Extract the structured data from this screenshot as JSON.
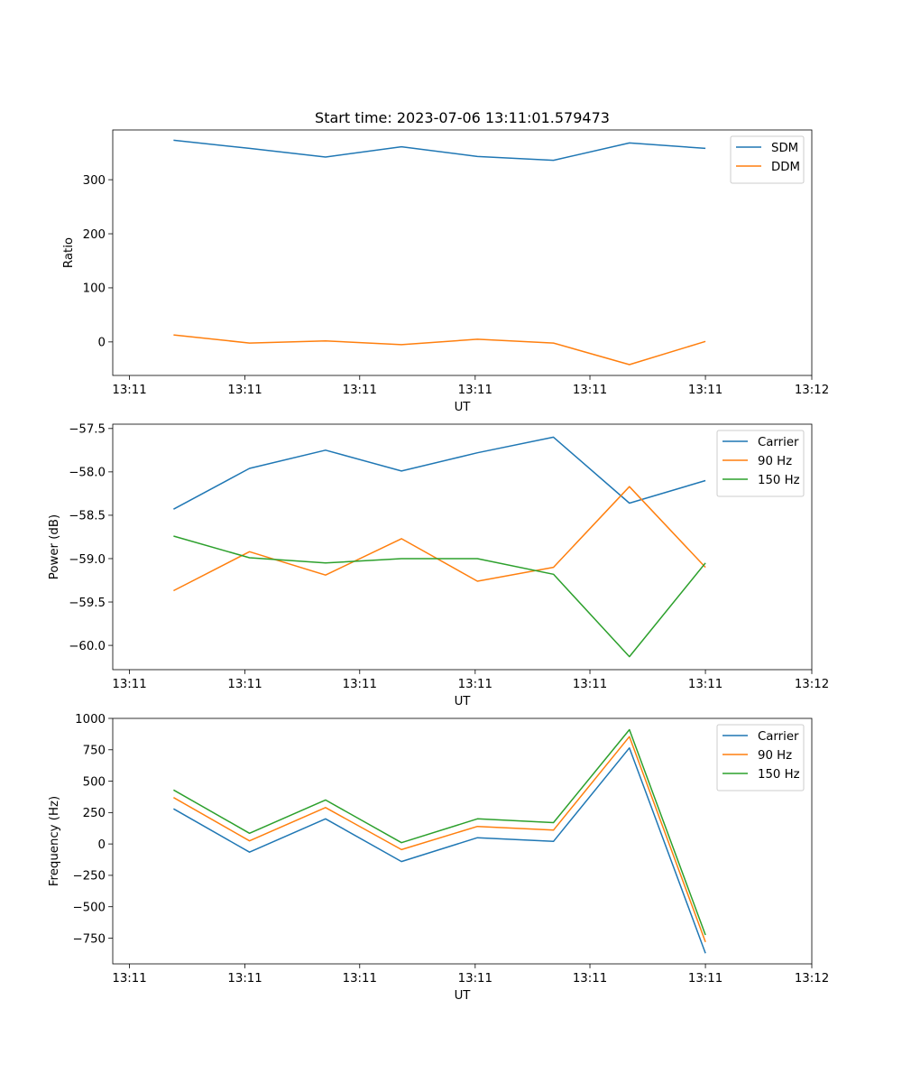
{
  "figure_title": "Start time: 2023-07-06 13:11:01.579473",
  "chart_data": [
    {
      "type": "line",
      "title": "Start time: 2023-07-06 13:11:01.579473",
      "xlabel": "UT",
      "ylabel": "Ratio",
      "x": [
        1,
        2,
        3,
        4,
        5,
        6,
        7,
        8
      ],
      "xlim": [
        0.2,
        9.4
      ],
      "xticks": [
        0.42,
        1.94,
        3.45,
        4.97,
        6.48,
        8.0,
        9.4
      ],
      "xtick_labels": [
        "13:11",
        "13:11",
        "13:11",
        "13:11",
        "13:11",
        "13:11",
        "13:12"
      ],
      "ylim": [
        -62,
        392
      ],
      "yticks": [
        0,
        100,
        200,
        300
      ],
      "ytick_labels": [
        "0",
        "100",
        "200",
        "300"
      ],
      "legend_position": "upper-right",
      "series": [
        {
          "name": "SDM",
          "color": "#1f77b4",
          "values": [
            373,
            358,
            342,
            361,
            343,
            336,
            368,
            358
          ]
        },
        {
          "name": "DDM",
          "color": "#ff7f0e",
          "values": [
            13,
            -2,
            2,
            -5,
            5,
            -2,
            -42,
            1
          ]
        }
      ]
    },
    {
      "type": "line",
      "xlabel": "UT",
      "ylabel": "Power (dB)",
      "x": [
        1,
        2,
        3,
        4,
        5,
        6,
        7,
        8
      ],
      "xlim": [
        0.2,
        9.4
      ],
      "xticks": [
        0.42,
        1.94,
        3.45,
        4.97,
        6.48,
        8.0,
        9.4
      ],
      "xtick_labels": [
        "13:11",
        "13:11",
        "13:11",
        "13:11",
        "13:11",
        "13:11",
        "13:12"
      ],
      "ylim": [
        -60.28,
        -57.45
      ],
      "yticks": [
        -60.0,
        -59.5,
        -59.0,
        -58.5,
        -58.0,
        -57.5
      ],
      "ytick_labels": [
        "−60.0",
        "−59.5",
        "−59.0",
        "−58.5",
        "−58.0",
        "−57.5"
      ],
      "legend_position": "upper-right",
      "series": [
        {
          "name": "Carrier",
          "color": "#1f77b4",
          "values": [
            -58.43,
            -57.96,
            -57.75,
            -57.99,
            -57.78,
            -57.6,
            -58.36,
            -58.1
          ]
        },
        {
          "name": "90 Hz",
          "color": "#ff7f0e",
          "values": [
            -59.37,
            -58.92,
            -59.19,
            -58.77,
            -59.26,
            -59.1,
            -58.17,
            -59.1
          ]
        },
        {
          "name": "150 Hz",
          "color": "#2ca02c",
          "values": [
            -58.74,
            -58.99,
            -59.05,
            -59.0,
            -59.0,
            -59.18,
            -60.13,
            -59.05
          ]
        }
      ]
    },
    {
      "type": "line",
      "xlabel": "UT",
      "ylabel": "Frequency (Hz)",
      "x": [
        1,
        2,
        3,
        4,
        5,
        6,
        7,
        8
      ],
      "xlim": [
        0.2,
        9.4
      ],
      "xticks": [
        0.42,
        1.94,
        3.45,
        4.97,
        6.48,
        8.0,
        9.4
      ],
      "xtick_labels": [
        "13:11",
        "13:11",
        "13:11",
        "13:11",
        "13:11",
        "13:11",
        "13:12"
      ],
      "ylim": [
        -955,
        1000
      ],
      "yticks": [
        -750,
        -500,
        -250,
        0,
        250,
        500,
        750,
        1000
      ],
      "ytick_labels": [
        "−750",
        "−500",
        "−250",
        "0",
        "250",
        "500",
        "750",
        "1000"
      ],
      "legend_position": "upper-right",
      "series": [
        {
          "name": "Carrier",
          "color": "#1f77b4",
          "values": [
            280,
            -65,
            200,
            -140,
            50,
            20,
            765,
            -870
          ]
        },
        {
          "name": "90 Hz",
          "color": "#ff7f0e",
          "values": [
            370,
            25,
            290,
            -45,
            140,
            110,
            855,
            -780
          ]
        },
        {
          "name": "150 Hz",
          "color": "#2ca02c",
          "values": [
            430,
            85,
            350,
            10,
            200,
            170,
            910,
            -725
          ]
        }
      ]
    }
  ]
}
